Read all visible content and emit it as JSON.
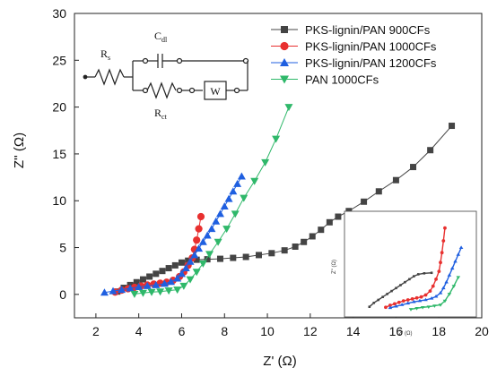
{
  "chart_data": {
    "type": "scatter",
    "title": "",
    "xlabel": "Z' (Ω)",
    "ylabel": "Z'' (Ω)",
    "xlim": [
      1,
      20
    ],
    "ylim": [
      -2.5,
      30
    ],
    "xticks": [
      2,
      4,
      6,
      8,
      10,
      12,
      14,
      16,
      18,
      20
    ],
    "yticks": [
      0,
      5,
      10,
      15,
      20,
      25,
      30
    ],
    "legend_position": "top-right",
    "grid": false,
    "series": [
      {
        "name": "PKS-lignin/PAN 900CFs",
        "color": "#444444",
        "marker": "square",
        "x": [
          3.0,
          3.3,
          3.6,
          3.9,
          4.2,
          4.5,
          4.8,
          5.1,
          5.4,
          5.7,
          6.0,
          6.3,
          6.7,
          7.2,
          7.8,
          8.4,
          9.0,
          9.6,
          10.2,
          10.8,
          11.3,
          11.7,
          12.1,
          12.5,
          12.9,
          13.3,
          13.8,
          14.5,
          15.2,
          16.0,
          16.8,
          17.6,
          18.6
        ],
        "y": [
          0.3,
          0.7,
          1.0,
          1.3,
          1.6,
          1.9,
          2.2,
          2.5,
          2.8,
          3.1,
          3.4,
          3.6,
          3.7,
          3.75,
          3.8,
          3.9,
          4.0,
          4.2,
          4.4,
          4.7,
          5.1,
          5.6,
          6.2,
          6.9,
          7.7,
          8.3,
          8.9,
          9.9,
          11.0,
          12.2,
          13.6,
          15.4,
          18.0
        ]
      },
      {
        "name": "PKS-lignin/PAN 1000CFs",
        "color": "#e8302f",
        "marker": "circle",
        "x": [
          2.9,
          3.2,
          3.5,
          3.8,
          4.1,
          4.4,
          4.7,
          5.0,
          5.3,
          5.6,
          5.9,
          6.1,
          6.3,
          6.5,
          6.6,
          6.7,
          6.8,
          6.9
        ],
        "y": [
          0.25,
          0.45,
          0.6,
          0.75,
          0.9,
          1.0,
          1.1,
          1.2,
          1.3,
          1.5,
          1.9,
          2.4,
          3.1,
          3.9,
          4.8,
          5.8,
          7.0,
          8.3
        ]
      },
      {
        "name": "PKS-lignin/PAN 1200CFs",
        "color": "#1f5fe0",
        "marker": "triangle-up",
        "x": [
          2.4,
          2.8,
          3.2,
          3.6,
          4.0,
          4.4,
          4.8,
          5.2,
          5.5,
          5.8,
          6.0,
          6.2,
          6.4,
          6.6,
          6.8,
          7.0,
          7.2,
          7.4,
          7.6,
          7.8,
          8.0,
          8.2,
          8.4,
          8.6,
          8.8
        ],
        "y": [
          0.2,
          0.35,
          0.5,
          0.65,
          0.8,
          0.9,
          1.0,
          1.15,
          1.35,
          1.7,
          2.2,
          2.8,
          3.5,
          4.2,
          4.9,
          5.6,
          6.3,
          7.0,
          7.8,
          8.6,
          9.4,
          10.2,
          11.0,
          11.8,
          12.6
        ]
      },
      {
        "name": "PAN 1000CFs",
        "color": "#2fb86a",
        "marker": "triangle-down",
        "x": [
          3.8,
          4.2,
          4.6,
          5.0,
          5.4,
          5.8,
          6.1,
          6.4,
          6.7,
          7.0,
          7.3,
          7.7,
          8.1,
          8.5,
          8.9,
          9.4,
          9.9,
          10.4,
          11.0
        ],
        "y": [
          0.05,
          0.15,
          0.25,
          0.3,
          0.4,
          0.5,
          0.9,
          1.6,
          2.4,
          3.3,
          4.3,
          5.6,
          7.0,
          8.6,
          10.3,
          12.1,
          14.1,
          16.6,
          20.0
        ]
      }
    ],
    "circuit_labels": {
      "rs": "R",
      "rs_sub": "s",
      "cdl": "C",
      "cdl_sub": "dl",
      "rct": "R",
      "rct_sub": "ct",
      "w": "W"
    },
    "inset": {
      "ylabel": "Z\" (Ω)",
      "xlabel": "Z' (Ω)"
    }
  }
}
